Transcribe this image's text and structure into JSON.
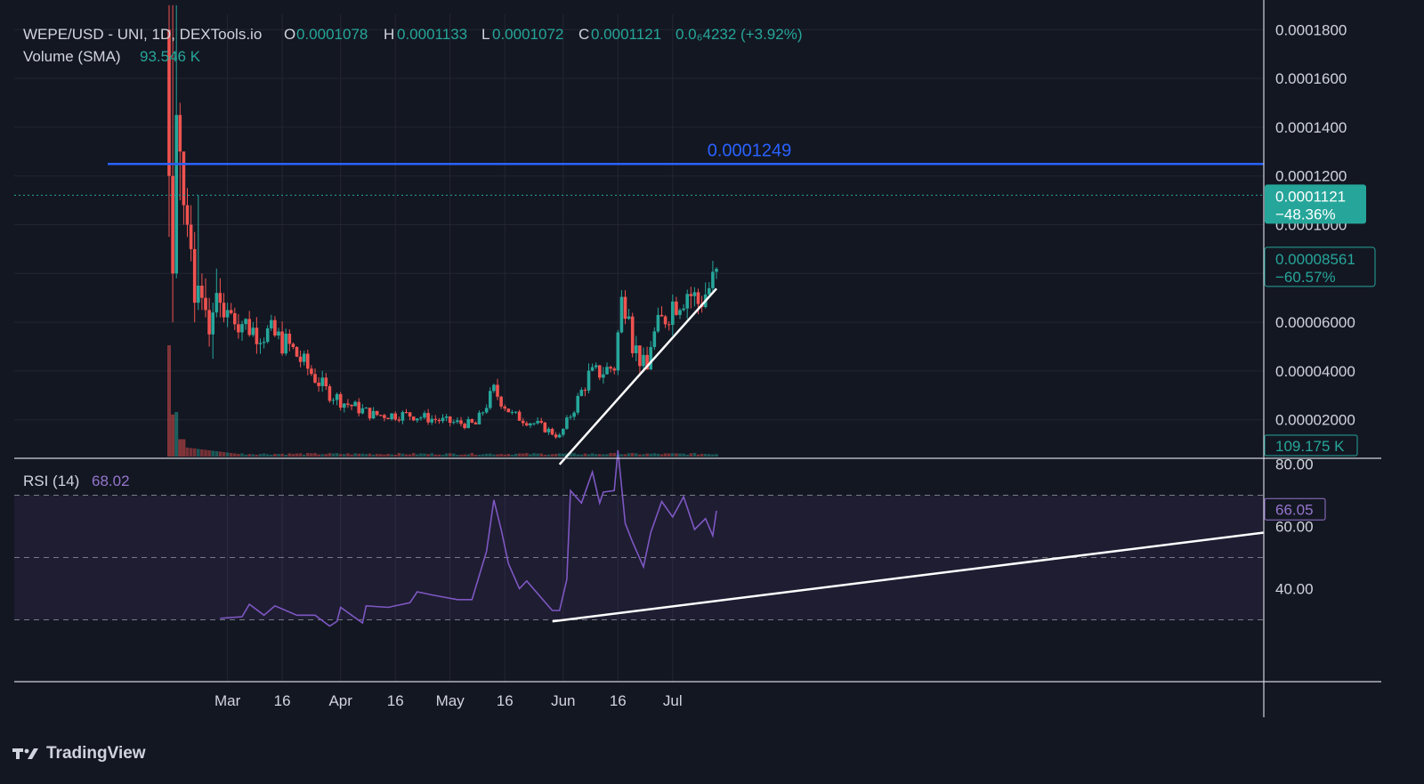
{
  "header": {
    "symbol": "WEPE/USD - UNI, 1D, DEXTools.io",
    "o_label": "O",
    "o_value": "0.0001078",
    "h_label": "H",
    "h_value": "0.0001133",
    "l_label": "L",
    "l_value": "0.0001072",
    "c_label": "C",
    "c_value": "0.0001121",
    "change": "0.0₆4232 (+3.92%)",
    "volume_label": "Volume (SMA)",
    "volume_value": "93.546 K"
  },
  "rsi_header": {
    "label": "RSI (14)",
    "value": "68.02"
  },
  "branding": {
    "name": "TradingView"
  },
  "colors": {
    "background": "#131722",
    "up": "#26a69a",
    "down": "#ef5350",
    "level_line": "#2962ff",
    "rsi_line": "#7e57c2",
    "trendline": "#ffffff"
  },
  "chart_data": [
    {
      "type": "candlestick",
      "title": "WEPE/USD - UNI, 1D, DEXTools.io",
      "x_ticks": [
        "Mar",
        "16",
        "Apr",
        "16",
        "May",
        "16",
        "Jun",
        "16",
        "Jul"
      ],
      "y_ticks": [
        "0.0001800",
        "0.0001600",
        "0.0001400",
        "0.0001200",
        "0.0001000",
        "0.00008000",
        "0.00006000",
        "0.00004000",
        "0.00002000"
      ],
      "ylim": [
        5.5e-06,
        0.000184
      ],
      "horizontal_line": {
        "value": 0.0001249,
        "label": "0.0001249"
      },
      "price_marker": {
        "value": 0.0001121,
        "label": "0.0001121",
        "change": "−48.36%"
      },
      "secondary_marker": {
        "value": 8.561e-05,
        "label": "0.00008561",
        "change": "−60.57%"
      },
      "volume_marker": "109.175 K",
      "trendline": {
        "from": [
          "2024-05-31",
          4.6e-06
        ],
        "to": [
          "2024-07-13",
          7.38e-05
        ]
      },
      "ohlc_approx": [
        [
          "2024-02-14",
          0.00018,
          0.00019,
          9.5e-05,
          0.00012
        ],
        [
          "2024-02-15",
          0.00012,
          0.00019,
          6e-05,
          8e-05
        ],
        [
          "2024-02-16",
          8e-05,
          0.00019,
          7.8e-05,
          0.000145
        ],
        [
          "2024-02-17",
          0.000145,
          0.00015,
          0.00011,
          0.00013
        ],
        [
          "2024-02-18",
          0.00013,
          0.000128,
          0.0001,
          0.000108
        ],
        [
          "2024-02-19",
          0.000108,
          0.000115,
          9.5e-05,
          0.0001
        ],
        [
          "2024-02-20",
          0.0001,
          0.000108,
          8.5e-05,
          9e-05
        ],
        [
          "2024-02-21",
          9e-05,
          9.7e-05,
          6e-05,
          6.8e-05
        ],
        [
          "2024-02-22",
          6.8e-05,
          0.000112,
          6.5e-05,
          7.5e-05
        ],
        [
          "2024-02-23",
          7.5e-05,
          8e-05,
          6.5e-05,
          7e-05
        ],
        [
          "2024-02-24",
          7e-05,
          7.8e-05,
          6.2e-05,
          6.5e-05
        ],
        [
          "2024-02-25",
          6.5e-05,
          7e-05,
          5e-05,
          5.5e-05
        ],
        [
          "2024-02-26",
          5.5e-05,
          6.8e-05,
          4.5e-05,
          6.4e-05
        ],
        [
          "2024-02-27",
          6.4e-05,
          8.2e-05,
          6.2e-05,
          7.2e-05
        ],
        [
          "2024-02-28",
          7.2e-05,
          7.8e-05,
          6.2e-05,
          6.8e-05
        ],
        [
          "2024-02-29",
          6.8e-05,
          7.2e-05,
          6e-05,
          6.2e-05
        ],
        [
          "2024-03-01",
          6.2e-05,
          6.8e-05,
          5.8e-05,
          6.5e-05
        ]
      ],
      "volume_approx": [
        [
          "2024-02-14",
          45000
        ],
        [
          "2024-02-15",
          17000
        ],
        [
          "2024-02-16",
          18000
        ],
        [
          "2024-02-17",
          7000
        ],
        [
          "2024-02-18",
          7000
        ]
      ]
    },
    {
      "type": "line",
      "title": "RSI (14)",
      "series": [
        {
          "values_approx": [
            [
              "2024-02-28",
              30.5
            ],
            [
              "2024-03-05",
              31
            ],
            [
              "2024-03-07",
              35
            ],
            [
              "2024-03-11",
              31.5
            ],
            [
              "2024-03-14",
              34.5
            ],
            [
              "2024-03-20",
              31.5
            ],
            [
              "2024-03-25",
              31.5
            ],
            [
              "2024-03-29",
              28
            ],
            [
              "2024-03-31",
              29.5
            ],
            [
              "2024-04-01",
              34
            ],
            [
              "2024-04-07",
              29
            ],
            [
              "2024-04-08",
              34.5
            ],
            [
              "2024-04-14",
              34
            ],
            [
              "2024-04-20",
              35.5
            ],
            [
              "2024-04-22",
              39
            ],
            [
              "2024-04-26",
              38
            ],
            [
              "2024-05-03",
              36.5
            ],
            [
              "2024-05-07",
              36.5
            ],
            [
              "2024-05-11",
              52
            ],
            [
              "2024-05-13",
              68.5
            ],
            [
              "2024-05-15",
              59
            ],
            [
              "2024-05-17",
              48
            ],
            [
              "2024-05-20",
              40
            ],
            [
              "2024-05-22",
              42.5
            ],
            [
              "2024-05-29",
              33
            ],
            [
              "2024-05-31",
              33
            ],
            [
              "2024-06-02",
              43
            ],
            [
              "2024-06-03",
              71.5
            ],
            [
              "2024-06-06",
              67.5
            ],
            [
              "2024-06-09",
              77.5
            ],
            [
              "2024-06-11",
              67.5
            ],
            [
              "2024-06-12",
              71
            ],
            [
              "2024-06-15",
              71.5
            ],
            [
              "2024-06-16",
              84.5
            ],
            [
              "2024-06-18",
              61
            ],
            [
              "2024-06-20",
              55
            ],
            [
              "2024-06-23",
              47
            ],
            [
              "2024-06-25",
              58
            ],
            [
              "2024-06-28",
              68
            ],
            [
              "2024-07-01",
              63
            ],
            [
              "2024-07-04",
              69.5
            ],
            [
              "2024-07-07",
              59
            ],
            [
              "2024-07-10",
              62.5
            ],
            [
              "2024-07-12",
              57
            ],
            [
              "2024-07-13",
              65
            ]
          ]
        }
      ],
      "y_ticks": [
        "80.00",
        "60.00",
        "40.00"
      ],
      "ylim": [
        20,
        90
      ],
      "bands": [
        30,
        50,
        70
      ],
      "last_value": "66.05",
      "trendline": {
        "from": [
          "2024-05-31",
          29.5
        ],
        "to": [
          "2024-07-13",
          58
        ]
      }
    }
  ]
}
